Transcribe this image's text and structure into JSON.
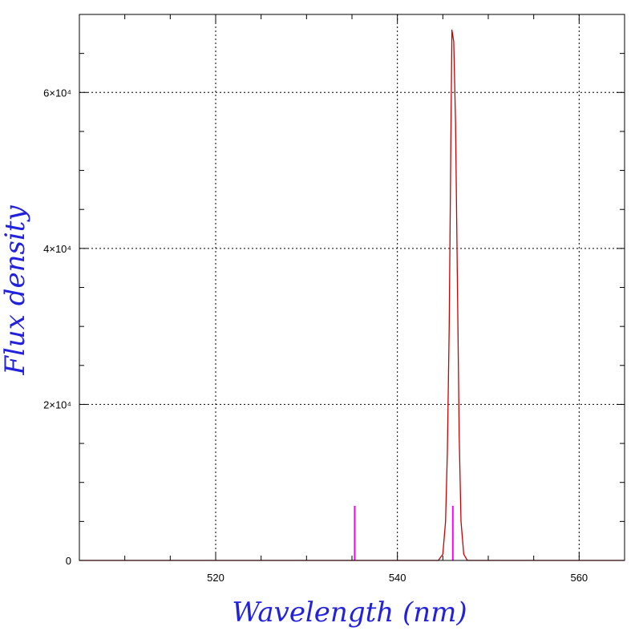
{
  "chart_data": {
    "type": "line",
    "xlabel": "Wavelength (nm)",
    "ylabel": "Flux density",
    "xlim": [
      505,
      565
    ],
    "ylim": [
      0,
      70000
    ],
    "grid": true,
    "x_ticks": [
      {
        "value": 520,
        "label": "520"
      },
      {
        "value": 540,
        "label": "540"
      },
      {
        "value": 560,
        "label": "560"
      }
    ],
    "y_ticks": [
      {
        "value": 0,
        "label": "0"
      },
      {
        "value": 20000,
        "label": "2×10⁴"
      },
      {
        "value": 40000,
        "label": "4×10⁴"
      },
      {
        "value": 60000,
        "label": "6×10⁴"
      }
    ],
    "series": [
      {
        "color": "#cc0000",
        "x": [
          505,
          544.5,
          545.0,
          545.3,
          545.5,
          545.7,
          545.9,
          546.0,
          546.2,
          546.4,
          546.6,
          546.8,
          547.0,
          547.3,
          547.7,
          548.0,
          565
        ],
        "y": [
          0,
          0,
          800,
          5000,
          14000,
          30000,
          56000,
          68000,
          66500,
          56000,
          36000,
          16000,
          5000,
          800,
          0,
          0,
          0
        ]
      }
    ],
    "markers": [
      {
        "color": "#ff00ff",
        "x": 535.3,
        "y": 7000
      },
      {
        "color": "#ff00ff",
        "x": 546.1,
        "y": 7000
      }
    ]
  }
}
